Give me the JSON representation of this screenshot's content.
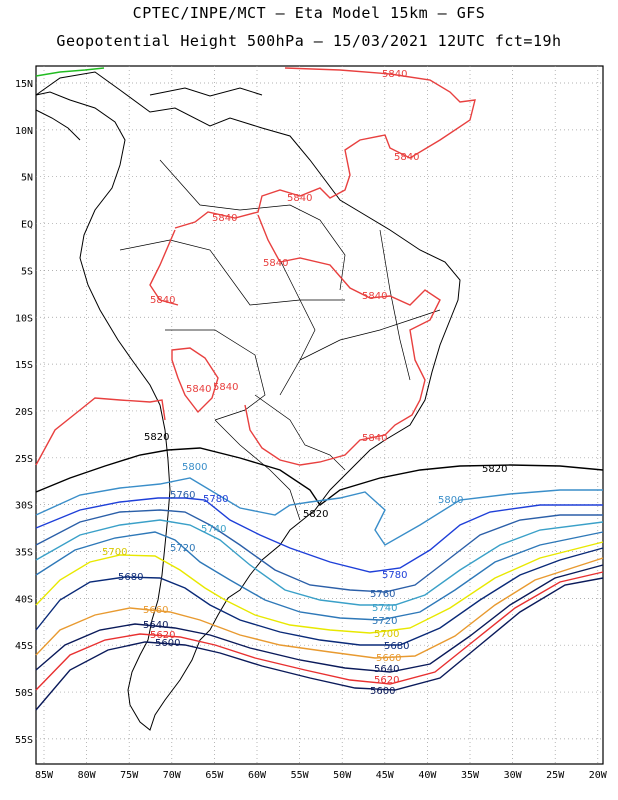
{
  "title_line1": "CPTEC/INPE/MCT –  Eta Model 15km – GFS",
  "title_line2": "Geopotential Height 500hPa – 15/03/2021 12UTC fct=19h",
  "lat_labels": [
    "15N",
    "10N",
    "5N",
    "EQ",
    "5S",
    "10S",
    "15S",
    "20S",
    "25S",
    "30S",
    "35S",
    "40S",
    "45S",
    "50S",
    "55S"
  ],
  "lon_labels": [
    "85W",
    "80W",
    "75W",
    "70W",
    "65W",
    "60W",
    "55W",
    "50W",
    "45W",
    "40W",
    "35W",
    "30W",
    "25W",
    "20W"
  ],
  "contour_levels": [
    {
      "value": "5840",
      "color": "#e8403f"
    },
    {
      "value": "5820",
      "color": "#000000"
    },
    {
      "value": "5800",
      "color": "#3a8ec9"
    },
    {
      "value": "5780",
      "color": "#1e3fd8"
    },
    {
      "value": "5760",
      "color": "#2b5fa8"
    },
    {
      "value": "5740",
      "color": "#3aa0c8"
    },
    {
      "value": "5720",
      "color": "#2e78b8"
    },
    {
      "value": "5700",
      "color": "#e8e800"
    },
    {
      "value": "5680",
      "color": "#0a2a78"
    },
    {
      "value": "5660",
      "color": "#e89a30"
    },
    {
      "value": "5640",
      "color": "#0a1a5a"
    },
    {
      "value": "5620",
      "color": "#e83030"
    },
    {
      "value": "5600",
      "color": "#0a1a5a"
    }
  ]
}
